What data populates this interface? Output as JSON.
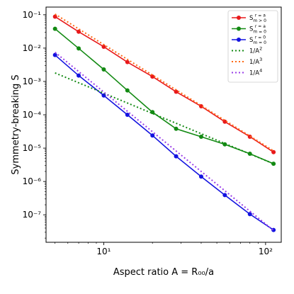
{
  "chart_data": {
    "type": "line",
    "xscale": "log",
    "yscale": "log",
    "xlim": [
      4.4,
      125
    ],
    "ylim": [
      1.5e-08,
      0.17
    ],
    "xlabel": "Aspect ratio A = R₀₀/a",
    "ylabel": "Symmetry-breaking S",
    "x_tick_labels": [
      {
        "value": 10,
        "label": "10¹"
      },
      {
        "value": 100,
        "label": "10²"
      }
    ],
    "y_tick_labels": [
      {
        "value": 1e-07,
        "label": "10⁻⁷"
      },
      {
        "value": 1e-06,
        "label": "10⁻⁶"
      },
      {
        "value": 1e-05,
        "label": "10⁻⁵"
      },
      {
        "value": 0.0001,
        "label": "10⁻⁴"
      },
      {
        "value": 0.001,
        "label": "10⁻³"
      },
      {
        "value": 0.01,
        "label": "10⁻²"
      },
      {
        "value": 0.1,
        "label": "10⁻¹"
      }
    ],
    "grid": false,
    "legend_position": "top-right",
    "series": [
      {
        "name": "S_{m>0}^{r=a}",
        "legend_main": "S",
        "legend_sub": "m > 0",
        "legend_sup": "r = a",
        "color": "#e8191b",
        "style": "solid",
        "marker": true,
        "x": [
          5,
          7,
          10,
          14,
          20,
          28,
          40,
          56,
          80,
          112
        ],
        "y": [
          0.088,
          0.031,
          0.011,
          0.0038,
          0.0014,
          0.00049,
          0.00018,
          6.2e-05,
          2.2e-05,
          7.6e-06
        ]
      },
      {
        "name": "S_{m=0}^{r=a}",
        "legend_main": "S",
        "legend_sub": "m = 0",
        "legend_sup": "r = a",
        "color": "#138a13",
        "style": "solid",
        "marker": true,
        "x": [
          5,
          7,
          10,
          14,
          20,
          28,
          40,
          56,
          80,
          112
        ],
        "y": [
          0.038,
          0.0098,
          0.0023,
          0.00054,
          0.00012,
          3.8e-05,
          2.2e-05,
          1.3e-05,
          6.8e-06,
          3.4e-06
        ]
      },
      {
        "name": "S_{m=0}^{r=0}",
        "legend_main": "S",
        "legend_sub": "m = 0",
        "legend_sup": "r = 0",
        "color": "#1313e0",
        "style": "solid",
        "marker": true,
        "x": [
          5,
          7,
          10,
          14,
          20,
          28,
          40,
          56,
          80,
          112
        ],
        "y": [
          0.0062,
          0.0015,
          0.00038,
          0.0001,
          2.4e-05,
          5.7e-06,
          1.4e-06,
          3.9e-07,
          1.05e-07,
          3.5e-08
        ]
      },
      {
        "name": "1/A^2",
        "legend_main": "1/A",
        "legend_sup_only": "2",
        "color": "#138a13",
        "style": "dotted",
        "marker": false,
        "x": [
          5,
          112
        ],
        "y": [
          0.0018,
          3.4e-06
        ]
      },
      {
        "name": "1/A^3",
        "legend_main": "1/A",
        "legend_sup_only": "3",
        "color": "#ff6a13",
        "style": "dotted",
        "marker": false,
        "x": [
          5,
          112
        ],
        "y": [
          0.105,
          8.3e-06
        ]
      },
      {
        "name": "1/A^4",
        "legend_main": "1/A",
        "legend_sup_only": "4",
        "color": "#9a3ee8",
        "style": "dotted",
        "marker": false,
        "x": [
          5,
          112
        ],
        "y": [
          0.0075,
          3.4e-08
        ]
      }
    ]
  }
}
